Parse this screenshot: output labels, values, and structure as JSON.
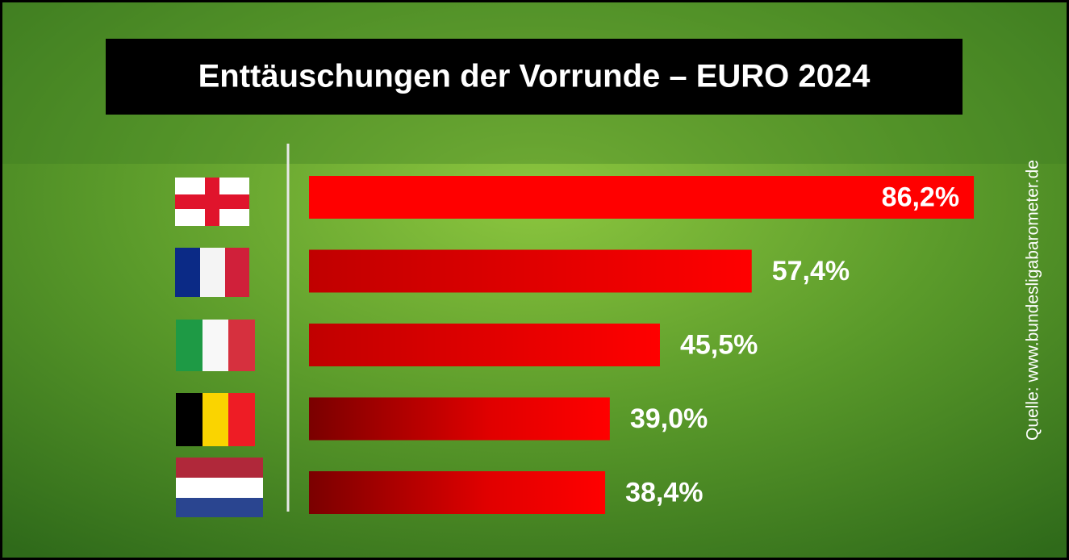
{
  "chart_data": {
    "type": "hbar",
    "title": "Enttäuschungen der Vorrunde – EURO 2024",
    "categories": [
      null,
      null,
      null,
      null,
      null
    ],
    "values": [
      86.2,
      57.4,
      45.5,
      39.0,
      38.4
    ],
    "value_labels": [
      "86,2%",
      "57,4%",
      "45,5%",
      "39,0%",
      "38,4%"
    ],
    "color": "#ff0000",
    "source": "Quelle: www.bundesligabarometer.de"
  }
}
